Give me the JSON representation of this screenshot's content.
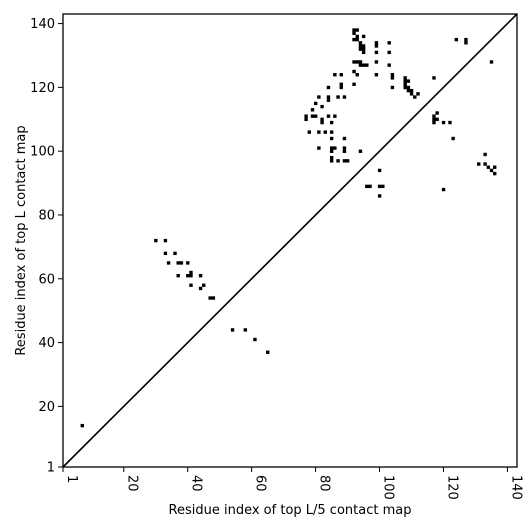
{
  "chart_data": {
    "type": "scatter",
    "title": "",
    "xlabel": "Residue index of top L/5 contact map",
    "ylabel": "Residue index of top L contact map",
    "xlim": [
      1,
      143
    ],
    "ylim": [
      1,
      143
    ],
    "xticks": [
      1,
      20,
      40,
      60,
      80,
      100,
      120,
      140
    ],
    "yticks": [
      1,
      20,
      40,
      60,
      80,
      100,
      120,
      140
    ],
    "xtick_labels": [
      "1",
      "20",
      "40",
      "60",
      "80",
      "100",
      "120",
      "140"
    ],
    "ytick_labels": [
      "1",
      "20",
      "40",
      "60",
      "80",
      "100",
      "120",
      "140"
    ],
    "xtick_rotation": "vertical",
    "grid": false,
    "marker": "square",
    "marker_color": "#000000",
    "diagonal": {
      "x": [
        1,
        143
      ],
      "y": [
        1,
        143
      ]
    },
    "series": [
      {
        "x": [
          7,
          30,
          33,
          33,
          34,
          36,
          37,
          37,
          38,
          40,
          40,
          41,
          41,
          41,
          44,
          44,
          45,
          47,
          48,
          54,
          58,
          61,
          65,
          77,
          77,
          78,
          79,
          79,
          80,
          80,
          81,
          81,
          81,
          82,
          82,
          82,
          83,
          84,
          84,
          84,
          84,
          85,
          85,
          85,
          85,
          85,
          85,
          85,
          86,
          86,
          86,
          87,
          87,
          88,
          88,
          88,
          89,
          89,
          89,
          89,
          89,
          90,
          92,
          92,
          92,
          92,
          92,
          92,
          93,
          93,
          93,
          93,
          93,
          94,
          94,
          94,
          94,
          94,
          94,
          95,
          95,
          95,
          95,
          95,
          96,
          96,
          97,
          99,
          99,
          99,
          99,
          99,
          100,
          100,
          100,
          101,
          103,
          103,
          103,
          104,
          104,
          104,
          108,
          108,
          108,
          108,
          109,
          109,
          109,
          110,
          110,
          111,
          112,
          117,
          117,
          117,
          117,
          118,
          118,
          120,
          120,
          122,
          123,
          124,
          127,
          127,
          131,
          133,
          133,
          134,
          135,
          135,
          136,
          136
        ],
        "y": [
          14,
          72,
          72,
          68,
          65,
          68,
          65,
          61,
          65,
          65,
          61,
          62,
          58,
          61,
          61,
          57,
          58,
          54,
          54,
          44,
          44,
          41,
          37,
          111,
          110,
          106,
          113,
          111,
          115,
          111,
          106,
          101,
          117,
          110,
          114,
          109,
          106,
          120,
          117,
          116,
          111,
          109,
          106,
          104,
          101,
          100,
          98,
          97,
          124,
          111,
          101,
          117,
          97,
          124,
          121,
          120,
          117,
          104,
          101,
          100,
          97,
          97,
          138,
          137,
          135,
          128,
          125,
          121,
          138,
          136,
          135,
          128,
          124,
          100,
          134,
          133,
          132,
          128,
          127,
          136,
          133,
          132,
          131,
          127,
          89,
          127,
          89,
          134,
          133,
          131,
          128,
          124,
          94,
          89,
          86,
          89,
          134,
          131,
          127,
          120,
          124,
          123,
          123,
          122,
          121,
          120,
          122,
          120,
          119,
          119,
          118,
          117,
          118,
          123,
          111,
          110,
          109,
          112,
          110,
          109,
          88,
          109,
          104,
          135,
          135,
          134,
          96,
          99,
          96,
          95,
          94,
          128,
          95,
          93
        ]
      }
    ]
  }
}
